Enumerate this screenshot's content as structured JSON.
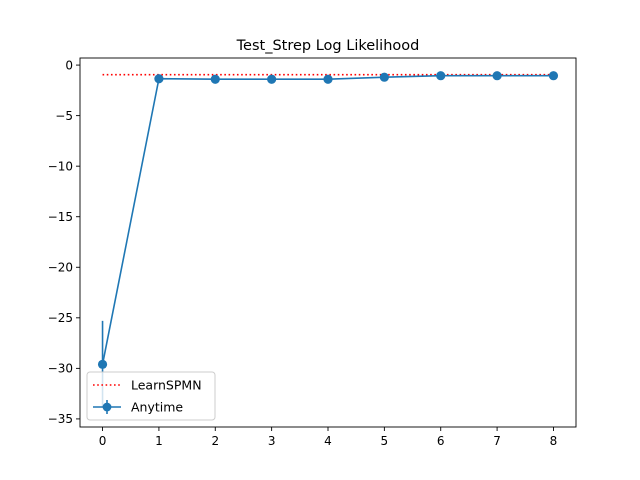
{
  "chart_data": {
    "type": "line",
    "title": "Test_Strep Log Likelihood",
    "xlabel": "",
    "ylabel": "",
    "x": [
      0,
      1,
      2,
      3,
      4,
      5,
      6,
      7,
      8
    ],
    "xticks": [
      "0",
      "1",
      "2",
      "3",
      "4",
      "5",
      "6",
      "7",
      "8"
    ],
    "yticks": [
      0,
      -5,
      -10,
      -15,
      -20,
      -25,
      -30,
      -35
    ],
    "ytick_labels": [
      "0",
      "−5",
      "−10",
      "−15",
      "−20",
      "−25",
      "−30",
      "−35"
    ],
    "xlim": [
      -0.4,
      8.4
    ],
    "ylim": [
      -35.8,
      0.7
    ],
    "grid": false,
    "legend_position": "lower-left",
    "series": [
      {
        "name": "LearnSPMN",
        "style": "dotted",
        "color": "#ff0000",
        "values": [
          -0.95,
          -0.95,
          -0.95,
          -0.95,
          -0.95,
          -0.95,
          -0.95,
          -0.95,
          -0.95
        ]
      },
      {
        "name": "Anytime",
        "style": "solid-marker",
        "color": "#1f77b4",
        "values": [
          -29.6,
          -1.35,
          -1.4,
          -1.4,
          -1.4,
          -1.2,
          -1.05,
          -1.05,
          -1.05
        ],
        "errors": [
          4.3,
          0,
          0,
          0,
          0,
          0,
          0,
          0,
          0
        ]
      }
    ]
  }
}
